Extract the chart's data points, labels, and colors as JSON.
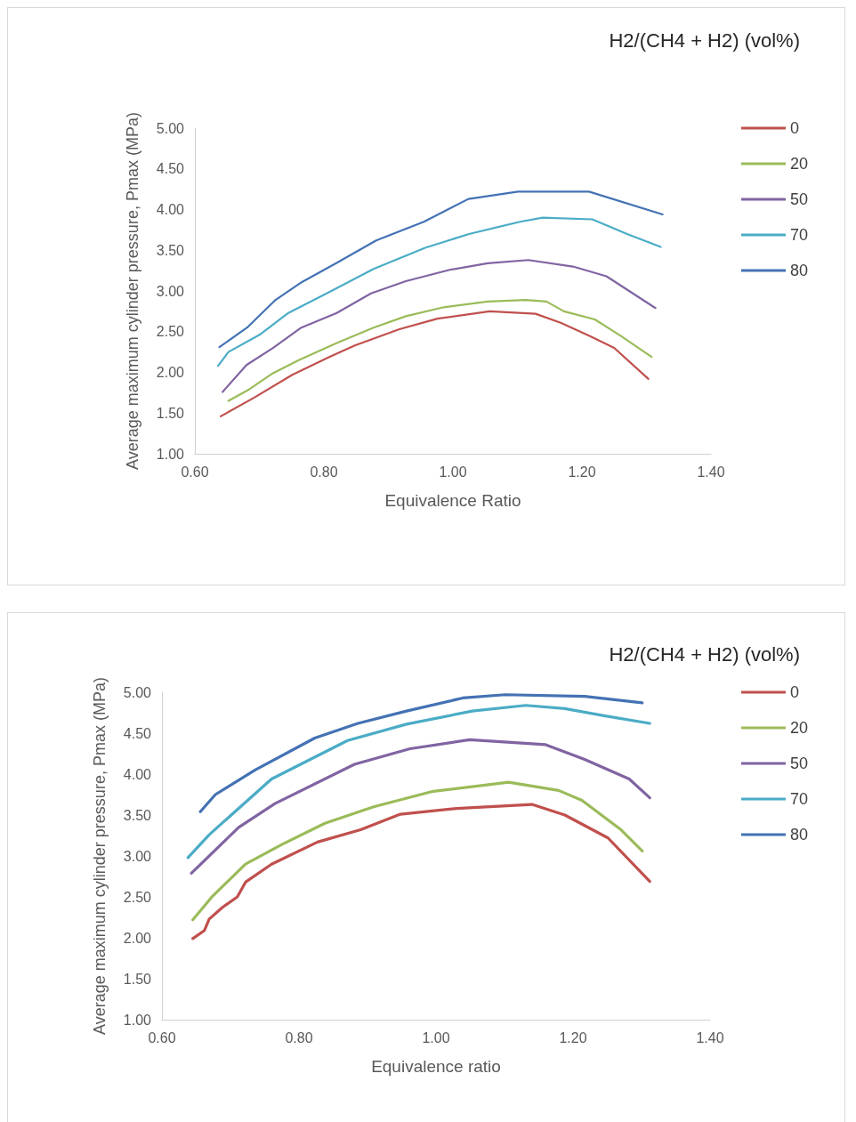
{
  "chart_data": [
    {
      "type": "line",
      "legend_title": "H2/(CH4 + H2) (vol%)",
      "xlabel": "Equivalence Ratio",
      "ylabel": "Average maximum cylinder pressure, Pmax (MPa)",
      "xlim": [
        0.6,
        1.4
      ],
      "xticks": [
        {
          "value": 0.6,
          "label": "0.60"
        },
        {
          "value": 0.8,
          "label": "0.80"
        },
        {
          "value": 1,
          "label": "1.00"
        },
        {
          "value": 1.2,
          "label": "1.20"
        },
        {
          "value": 1.4,
          "label": "1.40"
        }
      ],
      "ylim": [
        1,
        5
      ],
      "yticks": [
        {
          "value": 1,
          "label": "1.00"
        },
        {
          "value": 1.5,
          "label": "1.50"
        },
        {
          "value": 2,
          "label": "2.00"
        },
        {
          "value": 2.5,
          "label": "2.50"
        },
        {
          "value": 3,
          "label": "3.00"
        },
        {
          "value": 3.5,
          "label": "3.50"
        },
        {
          "value": 4,
          "label": "4.00"
        },
        {
          "value": 4.5,
          "label": "4.50"
        },
        {
          "value": 5,
          "label": "5.00"
        }
      ],
      "grid": false,
      "legend": "right",
      "marker": "none",
      "line_style": "solid",
      "series": [
        {
          "name": "0",
          "color": "#c0504d",
          "x": [
            0.64,
            0.692,
            0.751,
            0.809,
            0.848,
            0.917,
            0.976,
            1.057,
            1.128,
            1.167,
            1.211,
            1.25,
            1.303
          ],
          "values": [
            1.46,
            1.69,
            1.97,
            2.19,
            2.33,
            2.53,
            2.66,
            2.75,
            2.72,
            2.61,
            2.45,
            2.3,
            1.92
          ]
        },
        {
          "name": "20",
          "color": "#9bbb59",
          "x": [
            0.652,
            0.684,
            0.721,
            0.761,
            0.82,
            0.877,
            0.927,
            0.986,
            1.054,
            1.113,
            1.145,
            1.172,
            1.22,
            1.26,
            1.308
          ],
          "values": [
            1.65,
            1.79,
            1.99,
            2.15,
            2.36,
            2.55,
            2.69,
            2.8,
            2.87,
            2.89,
            2.87,
            2.75,
            2.65,
            2.45,
            2.19
          ]
        },
        {
          "name": "50",
          "color": "#8064a2",
          "x": [
            0.643,
            0.68,
            0.721,
            0.765,
            0.82,
            0.873,
            0.927,
            0.995,
            1.054,
            1.117,
            1.186,
            1.238,
            1.314
          ],
          "values": [
            1.76,
            2.09,
            2.3,
            2.55,
            2.73,
            2.97,
            3.12,
            3.26,
            3.34,
            3.38,
            3.3,
            3.18,
            2.79
          ]
        },
        {
          "name": "70",
          "color": "#4bacc6",
          "x": [
            0.636,
            0.652,
            0.702,
            0.745,
            0.809,
            0.877,
            0.957,
            1.025,
            1.104,
            1.139,
            1.216,
            1.27,
            1.322
          ],
          "values": [
            2.08,
            2.25,
            2.47,
            2.73,
            2.99,
            3.27,
            3.53,
            3.7,
            3.85,
            3.9,
            3.88,
            3.7,
            3.54
          ]
        },
        {
          "name": "80",
          "color": "#4472b4",
          "x": [
            0.638,
            0.681,
            0.725,
            0.766,
            0.821,
            0.881,
            0.955,
            1.024,
            1.101,
            1.211,
            1.325
          ],
          "values": [
            2.31,
            2.55,
            2.89,
            3.11,
            3.35,
            3.62,
            3.85,
            4.13,
            4.22,
            4.22,
            3.94
          ]
        }
      ]
    },
    {
      "type": "line",
      "legend_title": "H2/(CH4 + H2) (vol%)",
      "xlabel": "Equivalence ratio",
      "ylabel": "Average maximum cylinder pressure, Pmax (MPa)",
      "xlim": [
        0.6,
        1.4
      ],
      "xticks": [
        {
          "value": 0.6,
          "label": "0.60"
        },
        {
          "value": 0.8,
          "label": "0.80"
        },
        {
          "value": 1,
          "label": "1.00"
        },
        {
          "value": 1.2,
          "label": "1.20"
        },
        {
          "value": 1.4,
          "label": "1.40"
        }
      ],
      "ylim": [
        1,
        5
      ],
      "yticks": [
        {
          "value": 1,
          "label": "1.00"
        },
        {
          "value": 1.5,
          "label": "1.50"
        },
        {
          "value": 2,
          "label": "2.00"
        },
        {
          "value": 2.5,
          "label": "2.50"
        },
        {
          "value": 3,
          "label": "3.00"
        },
        {
          "value": 3.5,
          "label": "3.50"
        },
        {
          "value": 4,
          "label": "4.00"
        },
        {
          "value": 4.5,
          "label": "4.50"
        },
        {
          "value": 5,
          "label": "5.00"
        }
      ],
      "grid": false,
      "legend": "right",
      "marker": "none",
      "line_style": "solid",
      "series": [
        {
          "name": "0",
          "color": "#c0504d",
          "x": [
            0.645,
            0.662,
            0.669,
            0.688,
            0.71,
            0.722,
            0.76,
            0.827,
            0.89,
            0.948,
            1.03,
            1.14,
            1.188,
            1.251,
            1.312
          ],
          "values": [
            1.99,
            2.09,
            2.23,
            2.37,
            2.5,
            2.68,
            2.9,
            3.17,
            3.32,
            3.51,
            3.58,
            3.63,
            3.5,
            3.22,
            2.69
          ]
        },
        {
          "name": "20",
          "color": "#9bbb59",
          "x": [
            0.645,
            0.674,
            0.722,
            0.775,
            0.838,
            0.909,
            0.996,
            1.106,
            1.179,
            1.213,
            1.27,
            1.301
          ],
          "values": [
            2.22,
            2.51,
            2.9,
            3.14,
            3.4,
            3.6,
            3.79,
            3.9,
            3.8,
            3.68,
            3.32,
            3.06
          ]
        },
        {
          "name": "50",
          "color": "#8064a2",
          "x": [
            0.643,
            0.712,
            0.765,
            0.881,
            0.962,
            1.049,
            1.16,
            1.217,
            1.282,
            1.312
          ],
          "values": [
            2.79,
            3.35,
            3.64,
            4.12,
            4.31,
            4.42,
            4.36,
            4.18,
            3.94,
            3.71
          ]
        },
        {
          "name": "70",
          "color": "#4bacc6",
          "x": [
            0.638,
            0.669,
            0.76,
            0.871,
            0.957,
            1.053,
            1.131,
            1.188,
            1.247,
            1.312
          ],
          "values": [
            2.98,
            3.26,
            3.94,
            4.41,
            4.61,
            4.77,
            4.84,
            4.8,
            4.71,
            4.62
          ]
        },
        {
          "name": "80",
          "color": "#4472b4",
          "x": [
            0.656,
            0.678,
            0.736,
            0.823,
            0.886,
            0.957,
            1.039,
            1.101,
            1.217,
            1.301
          ],
          "values": [
            3.54,
            3.75,
            4.05,
            4.44,
            4.62,
            4.77,
            4.93,
            4.97,
            4.95,
            4.87
          ]
        }
      ]
    }
  ]
}
